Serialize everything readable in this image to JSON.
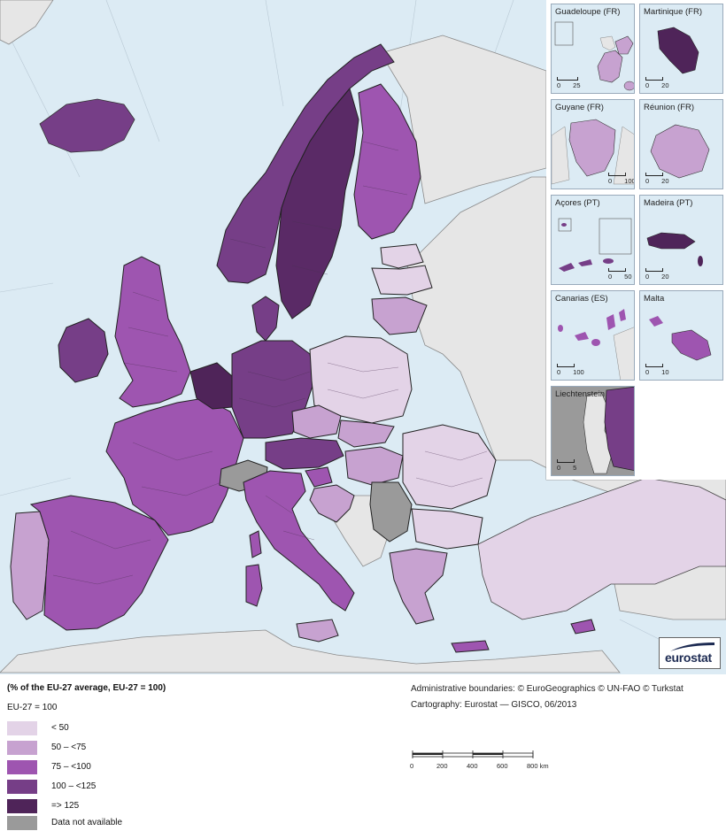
{
  "map": {
    "palette": {
      "sea": "#dcebf4",
      "non_eu": "#e6e6e6",
      "c1": "#e3d3e7",
      "c2": "#c7a2d0",
      "c3": "#9e55b0",
      "c4": "#763e87",
      "c5": "#4f2459",
      "na": "#9a9a9a",
      "border": "#222222"
    }
  },
  "insets": [
    {
      "name": "Guadeloupe (FR)",
      "scale_left": "0",
      "scale_right": "25"
    },
    {
      "name": "Martinique (FR)",
      "scale_left": "0",
      "scale_right": "20"
    },
    {
      "name": "Guyane (FR)",
      "scale_left": "0",
      "scale_right": "100"
    },
    {
      "name": "Réunion (FR)",
      "scale_left": "0",
      "scale_right": "20"
    },
    {
      "name": "Açores (PT)",
      "scale_left": "0",
      "scale_right": "50"
    },
    {
      "name": "Madeira (PT)",
      "scale_left": "0",
      "scale_right": "20"
    },
    {
      "name": "Canarias (ES)",
      "scale_left": "0",
      "scale_right": "100"
    },
    {
      "name": "Malta",
      "scale_left": "0",
      "scale_right": "10"
    },
    {
      "name": "Liechtenstein",
      "scale_left": "0",
      "scale_right": "5"
    }
  ],
  "logo": {
    "text": "eurostat"
  },
  "legend": {
    "title": "(% of the EU-27 average, EU-27 = 100)",
    "subtitle": "EU-27 = 100",
    "items": [
      {
        "label": "< 50",
        "color": "#e3d3e7"
      },
      {
        "label": "50 – <75",
        "color": "#c7a2d0"
      },
      {
        "label": "75 – <100",
        "color": "#9e55b0"
      },
      {
        "label": "100 – <125",
        "color": "#763e87"
      },
      {
        "label": "=> 125",
        "color": "#4f2459"
      },
      {
        "label": "Data not available",
        "color": "#9a9a9a"
      }
    ]
  },
  "credits": {
    "boundaries": "Administrative boundaries: © EuroGeographics © UN-FAO © Turkstat",
    "cartography": "Cartography: Eurostat — GISCO, 06/2013"
  },
  "scale": {
    "ticks": [
      "0",
      "200",
      "400",
      "600",
      "800 km"
    ]
  }
}
